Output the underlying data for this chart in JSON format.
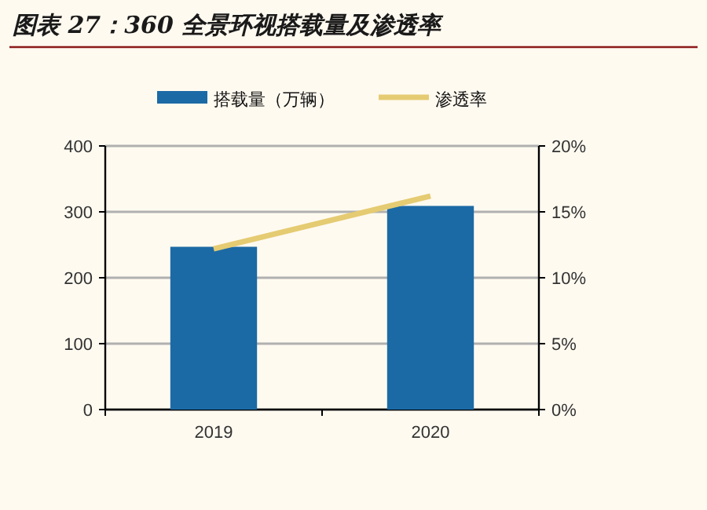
{
  "chart_data": {
    "type": "bar",
    "title": "图表 27：360 全景环视搭载量及渗透率",
    "categories": [
      "2019",
      "2020"
    ],
    "series": [
      {
        "name": "搭载量（万辆）",
        "color": "#1c6aa5",
        "values": [
          247,
          309
        ]
      },
      {
        "name": "渗透率",
        "type": "line",
        "axis": "y2",
        "color": "#e5cb72",
        "values": [
          12.2,
          16.2
        ]
      }
    ],
    "ylim": [
      0,
      400
    ],
    "yticks": [
      0,
      100,
      200,
      300,
      400
    ],
    "y2lim": [
      0,
      20
    ],
    "y2ticks": [
      {
        "value": 0,
        "label": "0%"
      },
      {
        "value": 5,
        "label": "5%"
      },
      {
        "value": 10,
        "label": "10%"
      },
      {
        "value": 15,
        "label": "15%"
      },
      {
        "value": 20,
        "label": "20%"
      }
    ],
    "grid": "y",
    "legend": "top"
  }
}
